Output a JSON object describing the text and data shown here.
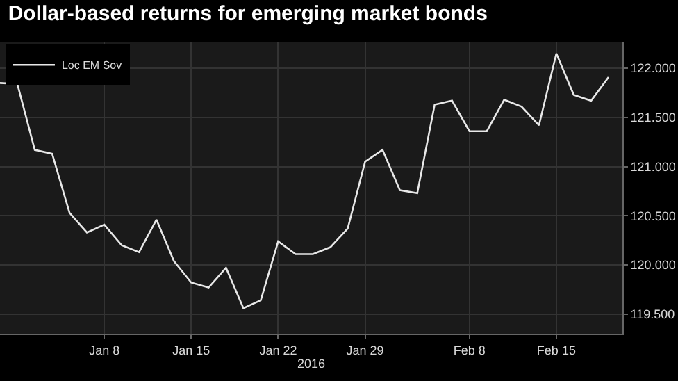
{
  "chart_data": {
    "type": "line",
    "title": "Dollar-based returns for emerging market bonds",
    "xlabel": "2016",
    "categories": [
      null,
      null,
      null,
      null,
      null,
      null,
      "Jan 8",
      null,
      null,
      null,
      null,
      "Jan 15",
      null,
      null,
      null,
      null,
      "Jan 22",
      null,
      null,
      null,
      null,
      "Jan 29",
      null,
      null,
      null,
      null,
      null,
      "Feb 8",
      null,
      null,
      null,
      null,
      "Feb 15",
      null,
      null,
      null
    ],
    "series": [
      {
        "name": "Loc EM Sov",
        "color": "#e8e8e8",
        "values": [
          121.85,
          121.84,
          121.17,
          121.13,
          120.53,
          120.33,
          120.41,
          120.2,
          120.13,
          120.46,
          120.04,
          119.82,
          119.77,
          119.97,
          119.56,
          119.64,
          120.24,
          120.11,
          120.11,
          120.18,
          120.37,
          121.05,
          121.17,
          120.76,
          120.73,
          121.63,
          121.67,
          121.36,
          121.36,
          121.68,
          121.61,
          121.42,
          122.15,
          121.73,
          121.67,
          121.91
        ]
      }
    ],
    "ylim": [
      119.3,
      122.27
    ],
    "yticks": [
      {
        "value": 119.5,
        "label": "119.500"
      },
      {
        "value": 120,
        "label": "120.000"
      },
      {
        "value": 120.5,
        "label": "120.500"
      },
      {
        "value": 121,
        "label": "121.000"
      },
      {
        "value": 121.5,
        "label": "121.500"
      },
      {
        "value": 122,
        "label": "122.000"
      }
    ],
    "grid": true,
    "legend": "top left",
    "marker": "none",
    "line_style": "solid"
  }
}
